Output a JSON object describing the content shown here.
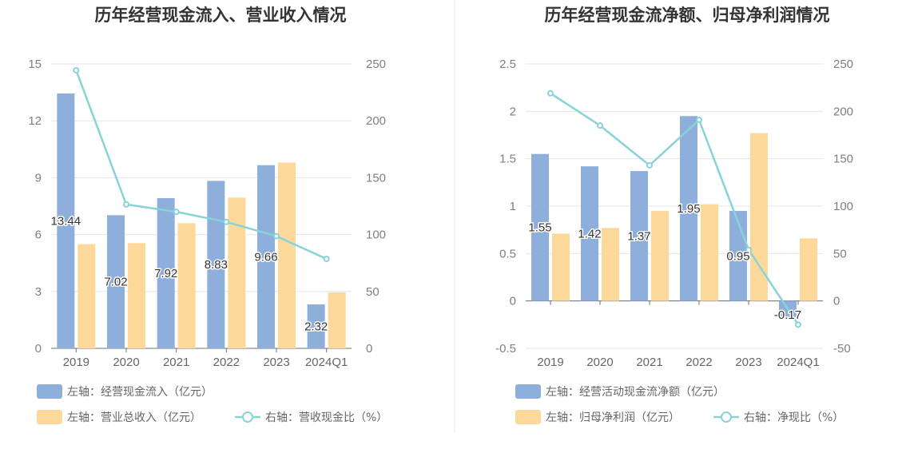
{
  "chart_data": [
    {
      "type": "bar",
      "title": "历年经营现金流入、营业收入情况",
      "categories": [
        "2019",
        "2020",
        "2021",
        "2022",
        "2023",
        "2024Q1"
      ],
      "y_left": {
        "ticks": [
          "0",
          "3",
          "6",
          "9",
          "12",
          "15"
        ],
        "ylim": [
          0,
          15
        ]
      },
      "y_right": {
        "ticks": [
          "0",
          "50",
          "100",
          "150",
          "200",
          "250"
        ],
        "ylim": [
          0,
          250
        ]
      },
      "series": [
        {
          "name": "左轴：经营现金流入（亿元）",
          "kind": "bar",
          "axis": "left",
          "color": "#8eaedc",
          "values": [
            13.44,
            7.02,
            7.92,
            8.83,
            9.66,
            2.32
          ],
          "labels": [
            "13.44",
            "7.02",
            "7.92",
            "8.83",
            "9.66",
            "2.32"
          ]
        },
        {
          "name": "左轴：营业总收入（亿元）",
          "kind": "bar",
          "axis": "left",
          "color": "#fdd89b",
          "values": [
            5.5,
            5.55,
            6.6,
            7.95,
            9.8,
            2.95
          ]
        },
        {
          "name": "右轴：营收现金比（%）",
          "kind": "line",
          "axis": "right",
          "color": "#88d3d8",
          "values": [
            244.4,
            126.5,
            120.0,
            111.1,
            98.6,
            78.6
          ]
        }
      ]
    },
    {
      "type": "bar",
      "title": "历年经营现金流净额、归母净利润情况",
      "categories": [
        "2019",
        "2020",
        "2021",
        "2022",
        "2023",
        "2024Q1"
      ],
      "y_left": {
        "ticks": [
          "-0.5",
          "0",
          "0.5",
          "1",
          "1.5",
          "2",
          "2.5"
        ],
        "ylim": [
          -0.5,
          2.5
        ]
      },
      "y_right": {
        "ticks": [
          "-50",
          "0",
          "50",
          "100",
          "150",
          "200",
          "250"
        ],
        "ylim": [
          -50,
          250
        ]
      },
      "series": [
        {
          "name": "左轴：经营活动现金流净额（亿元）",
          "kind": "bar",
          "axis": "left",
          "color": "#8eaedc",
          "values": [
            1.55,
            1.42,
            1.37,
            1.95,
            0.95,
            -0.17
          ],
          "labels": [
            "1.55",
            "1.42",
            "1.37",
            "1.95",
            "0.95",
            "-0.17"
          ]
        },
        {
          "name": "左轴：归母净利润（亿元）",
          "kind": "bar",
          "axis": "left",
          "color": "#fdd89b",
          "values": [
            0.71,
            0.77,
            0.95,
            1.02,
            1.77,
            0.66
          ]
        },
        {
          "name": "右轴：净现比（%）",
          "kind": "line",
          "axis": "right",
          "color": "#88d3d8",
          "values": [
            219.0,
            185.0,
            143.0,
            191.0,
            54.0,
            -25.0
          ]
        }
      ]
    }
  ]
}
